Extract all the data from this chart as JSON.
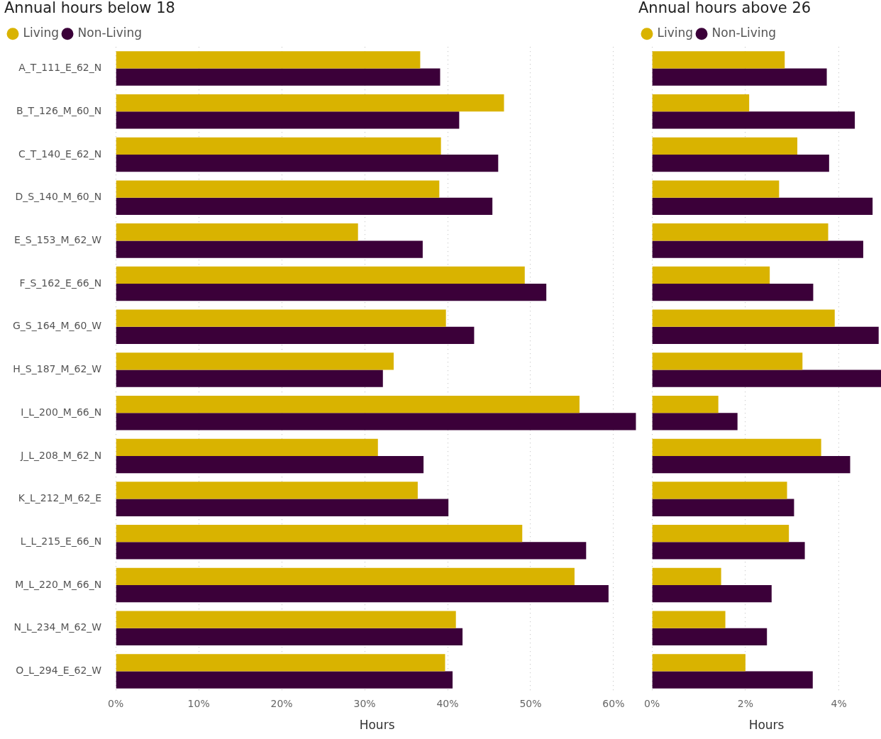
{
  "chart_data": [
    {
      "type": "bar",
      "orientation": "horizontal",
      "title": "Annual hours below 18",
      "xlabel": "Hours",
      "legend": "top left",
      "grid": "x",
      "categories": [
        "A_T_111_E_62_N",
        "B_T_126_M_60_N",
        "C_T_140_E_62_N",
        "D_S_140_M_60_N",
        "E_S_153_M_62_W",
        "F_S_162_E_66_N",
        "G_S_164_M_60_W",
        "H_S_187_M_62_W",
        "I_L_200_M_66_N",
        "J_L_208_M_62_N",
        "K_L_212_M_62_E",
        "L_L_215_E_66_N",
        "M_L_220_M_66_N",
        "N_L_234_M_62_W",
        "O_L_294_E_62_W"
      ],
      "series": [
        {
          "name": "Living",
          "color": "#d9b300",
          "values": [
            36.7,
            46.8,
            39.2,
            39.0,
            29.2,
            49.3,
            39.8,
            33.5,
            55.9,
            31.6,
            36.4,
            49.0,
            55.3,
            41.0,
            39.7
          ]
        },
        {
          "name": "Non-Living",
          "color": "#3b0039",
          "values": [
            39.1,
            41.4,
            46.1,
            45.4,
            37.0,
            51.9,
            43.2,
            32.2,
            62.7,
            37.1,
            40.1,
            56.7,
            59.4,
            41.8,
            40.6
          ]
        }
      ],
      "xlim": [
        0,
        63
      ],
      "xticks": [
        {
          "value": 0,
          "label": "0%"
        },
        {
          "value": 10,
          "label": "10%"
        },
        {
          "value": 20,
          "label": "20%"
        },
        {
          "value": 30,
          "label": "30%"
        },
        {
          "value": 40,
          "label": "40%"
        },
        {
          "value": 50,
          "label": "50%"
        },
        {
          "value": 60,
          "label": "60%"
        }
      ]
    },
    {
      "type": "bar",
      "orientation": "horizontal",
      "title": "Annual hours above 26",
      "xlabel": "Hours",
      "legend": "top left",
      "grid": "x",
      "tick_labels": "x",
      "categories": [
        null,
        null,
        null,
        null,
        null,
        null,
        null,
        null,
        null,
        null,
        null,
        null,
        null,
        null,
        null
      ],
      "series": [
        {
          "name": "Living",
          "color": "#d9b300",
          "values": [
            2.84,
            2.08,
            3.11,
            2.72,
            3.77,
            2.52,
            3.91,
            3.22,
            1.42,
            3.62,
            2.89,
            2.93,
            1.48,
            1.57,
            2.0
          ]
        },
        {
          "name": "Non-Living",
          "color": "#3b0039",
          "values": [
            3.74,
            4.34,
            3.79,
            4.72,
            4.52,
            3.45,
            4.85,
            4.9,
            1.83,
            4.24,
            3.04,
            3.27,
            2.56,
            2.46,
            3.44
          ]
        }
      ],
      "xlim": [
        0,
        4.9
      ],
      "xticks": [
        {
          "value": 0,
          "label": "0%"
        },
        {
          "value": 2,
          "label": "2%"
        },
        {
          "value": 4,
          "label": "4%"
        }
      ]
    }
  ]
}
